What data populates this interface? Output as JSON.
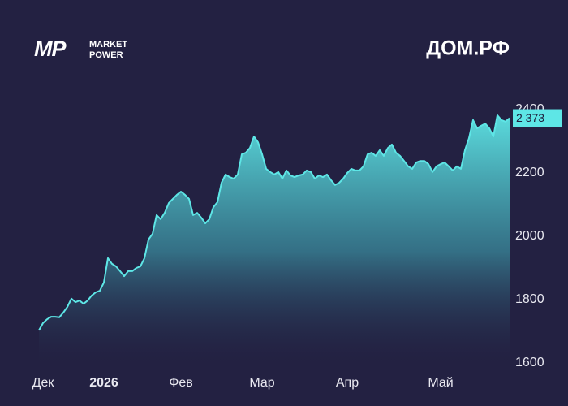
{
  "brand": {
    "mark": "MP",
    "line1": "MARKET",
    "line2": "POWER"
  },
  "chart_data": {
    "type": "area",
    "title": "ДОМ.РФ",
    "color": "#5ee6e6",
    "values": [
      1703,
      1726,
      1738,
      1746,
      1746,
      1744,
      1759,
      1777,
      1803,
      1792,
      1797,
      1787,
      1797,
      1813,
      1823,
      1828,
      1854,
      1931,
      1913,
      1905,
      1890,
      1874,
      1890,
      1890,
      1900,
      1905,
      1931,
      1990,
      2008,
      2067,
      2054,
      2074,
      2105,
      2118,
      2131,
      2141,
      2131,
      2118,
      2067,
      2074,
      2059,
      2041,
      2054,
      2092,
      2108,
      2169,
      2195,
      2187,
      2182,
      2195,
      2259,
      2264,
      2279,
      2315,
      2297,
      2259,
      2213,
      2203,
      2195,
      2203,
      2182,
      2208,
      2192,
      2187,
      2192,
      2195,
      2208,
      2203,
      2182,
      2192,
      2187,
      2195,
      2177,
      2162,
      2169,
      2182,
      2200,
      2213,
      2208,
      2208,
      2221,
      2259,
      2264,
      2254,
      2272,
      2254,
      2279,
      2290,
      2264,
      2254,
      2238,
      2221,
      2213,
      2233,
      2238,
      2238,
      2228,
      2203,
      2221,
      2228,
      2233,
      2221,
      2208,
      2221,
      2213,
      2272,
      2310,
      2367,
      2341,
      2349,
      2356,
      2341,
      2315,
      2382,
      2367,
      2362,
      2373
    ],
    "xlim": [
      0,
      116
    ],
    "xticks": [
      {
        "value": 1,
        "label": "Дек"
      },
      {
        "value": 16,
        "label": "2026"
      },
      {
        "value": 35,
        "label": "Фев"
      },
      {
        "value": 55,
        "label": "Мар"
      },
      {
        "value": 76,
        "label": "Апр"
      },
      {
        "value": 99,
        "label": "Май"
      }
    ],
    "ylim": [
      1600,
      2400
    ],
    "yticks": [
      1600,
      1800,
      2000,
      2200,
      2400
    ],
    "current": {
      "value": 2373,
      "label": "2 373"
    },
    "grid": false
  }
}
